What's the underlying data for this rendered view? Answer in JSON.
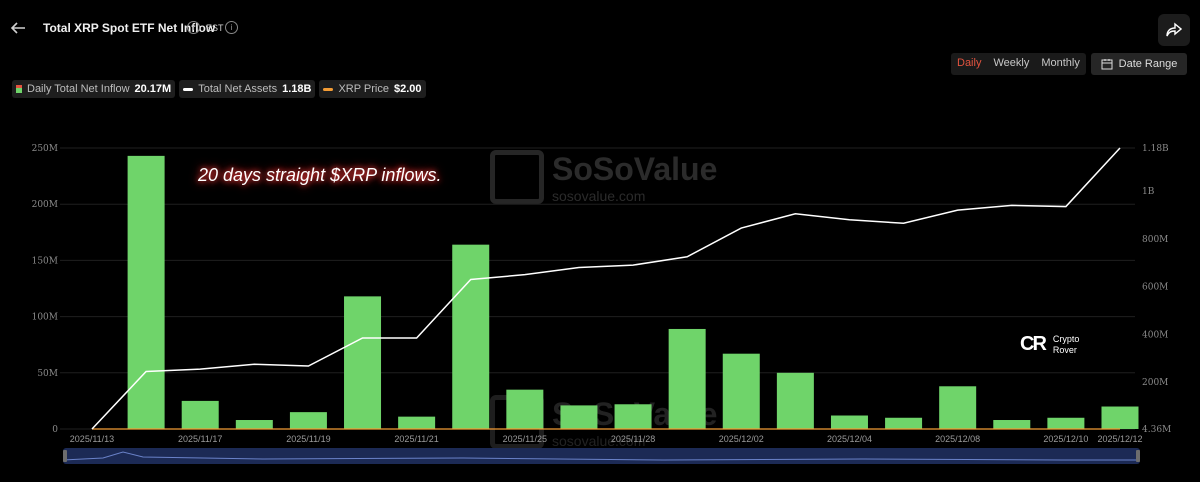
{
  "header": {
    "title": "Total XRP Spot ETF Net Inflow",
    "timezone": "EST"
  },
  "toggle": {
    "options": [
      "Daily",
      "Weekly",
      "Monthly"
    ],
    "active": "Daily"
  },
  "date_range_label": "Date Range",
  "legend": [
    {
      "label": "Daily Total Net Inflow",
      "value": "20.17M"
    },
    {
      "label": "Total Net Assets",
      "value": "1.18B"
    },
    {
      "label": "XRP Price",
      "value": "$2.00"
    }
  ],
  "annotation": "20 days straight $XRP inflows.",
  "watermark": {
    "brand": "SoSoValue",
    "url": "sosovalue.com"
  },
  "badge": {
    "logo": "CR",
    "line1": "Crypto",
    "line2": "Rover"
  },
  "colors": {
    "bar": "#6fd46a",
    "line": "#ffffff",
    "price": "#f39c35",
    "active": "#e2533f"
  },
  "chart_data": {
    "type": "bar",
    "categories": [
      "2025/11/13",
      "2025/11/14",
      "2025/11/17",
      "2025/11/18",
      "2025/11/19",
      "2025/11/20",
      "2025/11/21",
      "2025/11/24",
      "2025/11/25",
      "2025/11/26",
      "2025/11/28",
      "2025/12/01",
      "2025/12/02",
      "2025/12/03",
      "2025/12/04",
      "2025/12/05",
      "2025/12/08",
      "2025/12/09",
      "2025/12/10",
      "2025/12/12"
    ],
    "x_tick_labels": [
      "2025/11/13",
      "2025/11/17",
      "2025/11/19",
      "2025/11/21",
      "2025/11/25",
      "2025/11/28",
      "2025/12/02",
      "2025/12/04",
      "2025/12/08",
      "2025/12/10",
      "2025/12/12"
    ],
    "series": [
      {
        "name": "Daily Total Net Inflow",
        "axis": "left",
        "values": [
          0,
          243,
          25,
          8,
          15,
          118,
          11,
          164,
          35,
          21,
          22,
          89,
          67,
          50,
          12,
          10,
          38,
          8,
          10,
          20
        ]
      },
      {
        "name": "Total Net Assets",
        "axis": "right",
        "values": [
          4.36,
          245,
          255,
          275,
          268,
          385,
          385,
          630,
          650,
          680,
          690,
          725,
          845,
          905,
          880,
          865,
          920,
          940,
          935,
          1180
        ]
      }
    ],
    "left_axis": {
      "ticks": [
        "0",
        "50M",
        "100M",
        "150M",
        "200M",
        "250M"
      ],
      "ylim": [
        0,
        250
      ]
    },
    "right_axis": {
      "ticks": [
        "4.36M",
        "200M",
        "400M",
        "600M",
        "800M",
        "1B",
        "1.18B"
      ],
      "ylim": [
        4.36,
        1180
      ]
    }
  }
}
